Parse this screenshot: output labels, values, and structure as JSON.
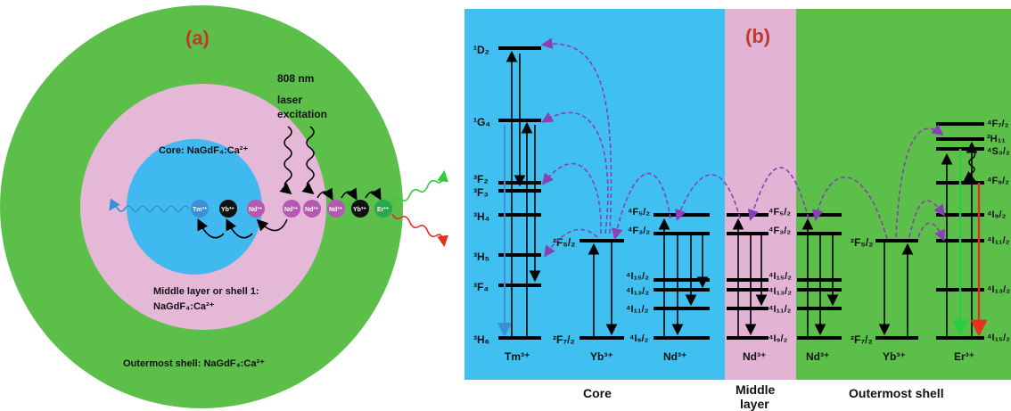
{
  "panel_a": {
    "label": "(a)",
    "excitation": [
      "808 nm",
      "laser",
      "excitation"
    ],
    "core_text": "Core: NaGdF₄:Ca²⁺",
    "middle_text_1": "Middle  layer or shell 1:",
    "middle_text_2": "NaGdF₄:Ca²⁺",
    "outer_text": "Outermost shell: NaGdF₄:Ca²⁺",
    "ions": [
      "Tm³⁺",
      "Yb³⁺",
      "Nd³⁺",
      "Nd³⁺",
      "Nd³⁺",
      "Nd³⁺",
      "Yb³⁺",
      "Er³⁺"
    ],
    "colors": {
      "outer": "#5bbf4a",
      "middle": "#e6b8d8",
      "core": "#3fb9ef",
      "tm": "#3a8fd6",
      "yb": "#111111",
      "nd": "#b35ab0",
      "er": "#2aa84a"
    }
  },
  "panel_b": {
    "label": "(b)",
    "regions": {
      "core": "Core",
      "middle_1": "Middle",
      "middle_2": "layer",
      "outer": "Outermost shell"
    },
    "ions": {
      "tm": "Tm³⁺",
      "yb": "Yb³⁺",
      "nd": "Nd³⁺",
      "er": "Er³⁺"
    },
    "tm_levels": [
      "¹D₂",
      "¹G₄",
      "³F₂",
      "³F₃",
      "³H₄",
      "³H₅",
      "³F₄",
      "³H₆"
    ],
    "yb_levels": [
      "²F₅/₂",
      "²F₇/₂"
    ],
    "nd_levels": [
      "⁴F₅/₂",
      "⁴F₃/₂",
      "⁴I₁₅/₂",
      "⁴I₁₃/₂",
      "⁴I₁₁/₂",
      "⁴I₉/₂"
    ],
    "er_levels": [
      "⁴F₇/₂",
      "²H₁₁",
      "⁴S₃/₂",
      "⁴F₉/₂",
      "⁴I₉/₂",
      "⁴I₁₁/₂",
      "⁴I₁₃/₂",
      "⁴I₁₅/₂"
    ],
    "colors": {
      "core": "#3fc0f0",
      "middle": "#e3b3d6",
      "outer": "#5cbf4a",
      "transfer": "#8a3fb5",
      "green_emission": "#2ecc40",
      "red_emission": "#e53020"
    }
  }
}
